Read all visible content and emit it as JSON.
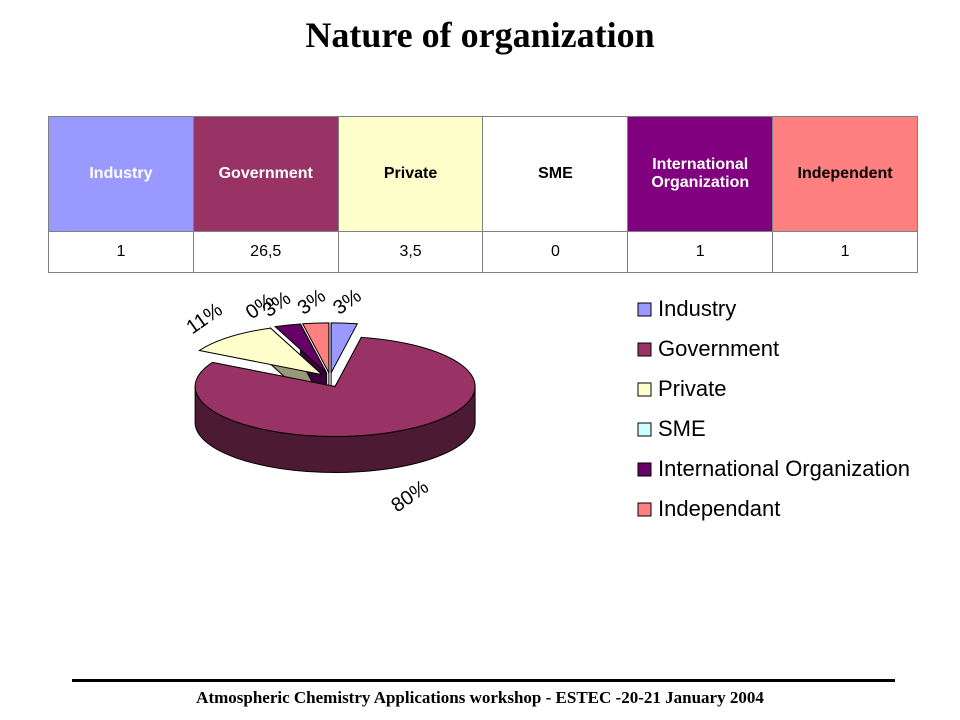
{
  "title": "Nature of organization",
  "table": {
    "header": [
      "Industry",
      "Government",
      "Private",
      "SME",
      "International Organization",
      "Independent"
    ],
    "header_colors": [
      "#9999ff",
      "#993366",
      "#ffffcc",
      "#ffffff",
      "#800080",
      "#ff8080"
    ],
    "header_text_colors": [
      "#ffffff",
      "#ffffff",
      "#000000",
      "#000000",
      "#ffffff",
      "#000000"
    ],
    "rows": [
      [
        "1",
        "26,5",
        "3,5",
        "0",
        "1",
        "1"
      ]
    ]
  },
  "chart_data": {
    "type": "pie",
    "categories": [
      "Industry",
      "Government",
      "Private",
      "SME",
      "International Organization",
      "Independant"
    ],
    "values": [
      3,
      80,
      11,
      0,
      3,
      3
    ],
    "value_labels": [
      "3%",
      "80%",
      "11%",
      "0%",
      "3%",
      "3%"
    ],
    "colors": [
      "#9999ff",
      "#993366",
      "#ffffcc",
      "#ccffff",
      "#660066",
      "#ff8080"
    ],
    "legend": "right"
  },
  "footer": "Atmospheric Chemistry Applications workshop - ESTEC -20-21 January 2004"
}
